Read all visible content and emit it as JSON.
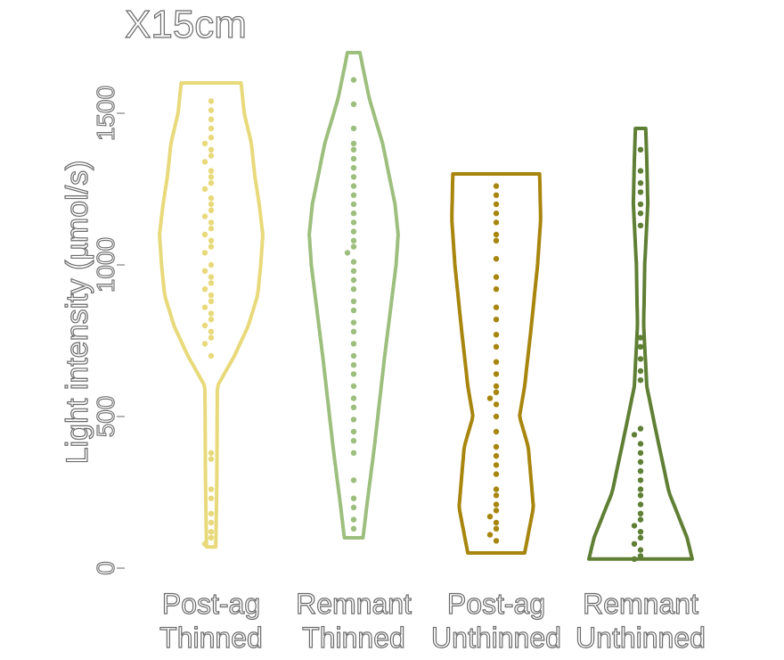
{
  "chart_data": {
    "type": "violin",
    "title": "X15cm",
    "ylabel": "Light intensity (µmol/s)",
    "xlabel": "",
    "ylim": [
      0,
      1700
    ],
    "yticks": [
      "0",
      "500",
      "1000",
      "1500"
    ],
    "categories": [
      "Post-ag Thinned",
      "Remnant Thinned",
      "Post-ag Unthinned",
      "Remnant Unthinned"
    ],
    "category_lines": [
      [
        "Post-ag",
        "Thinned"
      ],
      [
        "Remnant",
        "Thinned"
      ],
      [
        "Post-ag",
        "Unthinned"
      ],
      [
        "Remnant",
        "Unthinned"
      ]
    ],
    "colors": [
      "#e8d97a",
      "#9dbf7e",
      "#a8860e",
      "#5f7f34"
    ],
    "series": [
      {
        "category": "Post-ag Thinned",
        "range": [
          70,
          1600
        ],
        "points": [
          1540,
          1510,
          1480,
          1450,
          1420,
          1400,
          1380,
          1360,
          1340,
          1310,
          1290,
          1270,
          1250,
          1220,
          1200,
          1180,
          1160,
          1140,
          1120,
          1100,
          1080,
          1060,
          1040,
          1000,
          980,
          960,
          940,
          920,
          900,
          880,
          860,
          840,
          820,
          800,
          780,
          760,
          740,
          700,
          380,
          360,
          260,
          230,
          180,
          150,
          120,
          100,
          80
        ],
        "density": [
          [
            70,
            0.09
          ],
          [
            300,
            0.11
          ],
          [
            600,
            0.12
          ],
          [
            700,
            0.45
          ],
          [
            800,
            0.72
          ],
          [
            900,
            0.9
          ],
          [
            1000,
            0.96
          ],
          [
            1100,
            1.0
          ],
          [
            1200,
            0.93
          ],
          [
            1300,
            0.84
          ],
          [
            1400,
            0.78
          ],
          [
            1500,
            0.64
          ],
          [
            1600,
            0.58
          ]
        ]
      },
      {
        "category": "Remnant Thinned",
        "range": [
          100,
          1700
        ],
        "points": [
          1610,
          1530,
          1450,
          1400,
          1380,
          1350,
          1320,
          1290,
          1260,
          1230,
          1200,
          1170,
          1140,
          1110,
          1080,
          1060,
          1040,
          1010,
          980,
          950,
          920,
          880,
          850,
          810,
          780,
          740,
          700,
          670,
          640,
          600,
          560,
          530,
          490,
          450,
          420,
          380,
          290,
          230,
          200,
          160,
          130
        ],
        "density": [
          [
            100,
            0.18
          ],
          [
            200,
            0.25
          ],
          [
            400,
            0.4
          ],
          [
            700,
            0.6
          ],
          [
            1000,
            0.82
          ],
          [
            1100,
            0.86
          ],
          [
            1200,
            0.8
          ],
          [
            1400,
            0.56
          ],
          [
            1550,
            0.3
          ],
          [
            1700,
            0.12
          ]
        ]
      },
      {
        "category": "Post-ag Unthinned",
        "range": [
          50,
          1300
        ],
        "points": [
          1260,
          1230,
          1200,
          1170,
          1140,
          1100,
          1080,
          1020,
          960,
          920,
          860,
          820,
          770,
          730,
          680,
          640,
          600,
          580,
          560,
          540,
          500,
          450,
          400,
          370,
          340,
          310,
          260,
          240,
          210,
          190,
          170,
          150,
          130,
          110,
          90
        ],
        "density": [
          [
            50,
            0.55
          ],
          [
            200,
            0.72
          ],
          [
            400,
            0.62
          ],
          [
            500,
            0.45
          ],
          [
            600,
            0.55
          ],
          [
            800,
            0.68
          ],
          [
            1000,
            0.8
          ],
          [
            1150,
            0.86
          ],
          [
            1300,
            0.84
          ]
        ]
      },
      {
        "category": "Remnant Unthinned",
        "range": [
          30,
          1450
        ],
        "points": [
          1380,
          1310,
          1270,
          1240,
          1200,
          1170,
          1130,
          760,
          730,
          690,
          650,
          620,
          460,
          440,
          410,
          380,
          350,
          320,
          290,
          260,
          240,
          210,
          180,
          160,
          140,
          120,
          100,
          80,
          60,
          40,
          30
        ],
        "density": [
          [
            30,
            1.0
          ],
          [
            100,
            0.9
          ],
          [
            250,
            0.55
          ],
          [
            450,
            0.3
          ],
          [
            600,
            0.12
          ],
          [
            800,
            0.06
          ],
          [
            1000,
            0.08
          ],
          [
            1200,
            0.14
          ],
          [
            1350,
            0.12
          ],
          [
            1450,
            0.1
          ]
        ]
      }
    ]
  }
}
